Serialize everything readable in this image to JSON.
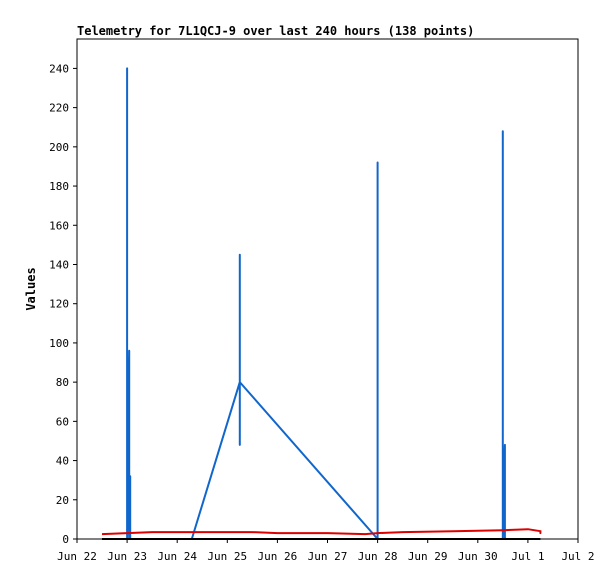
{
  "chart_data": {
    "type": "line",
    "title": "Telemetry for 7L1QCJ-9 over last 240 hours (138 points)",
    "xlabel": "",
    "ylabel": "Values",
    "xlim": [
      "2025-06-22T00:00",
      "2025-07-02T00:00"
    ],
    "ylim": [
      0,
      255
    ],
    "x_ticks": [
      "Jun 22",
      "Jun 23",
      "Jun 24",
      "Jun 25",
      "Jun 26",
      "Jun 27",
      "Jun 28",
      "Jun 29",
      "Jun 30",
      "Jul 1",
      "Jul 2"
    ],
    "y_ticks": [
      0,
      20,
      40,
      60,
      80,
      100,
      120,
      140,
      160,
      180,
      200,
      220,
      240
    ],
    "grid": false,
    "legend": "none",
    "series": [
      {
        "color": "#1166cc",
        "points": [
          [
            "2025-06-23T00:00",
            0
          ],
          [
            "2025-06-23T00:00",
            240
          ],
          [
            "2025-06-23T00:00",
            0
          ],
          [
            "2025-06-23T01:00",
            96
          ],
          [
            "2025-06-23T01:00",
            0
          ],
          [
            "2025-06-23T01:30",
            32
          ],
          [
            "2025-06-23T01:30",
            0
          ],
          [
            "2025-06-24T07:00",
            0
          ],
          [
            "2025-06-25T06:00",
            80
          ],
          [
            "2025-06-25T06:00",
            145
          ],
          [
            "2025-06-25T06:00",
            48
          ],
          [
            "2025-06-25T06:00",
            80
          ],
          [
            "2025-06-28T00:00",
            0
          ],
          [
            "2025-06-28T00:00",
            192
          ],
          [
            "2025-06-28T00:00",
            0
          ],
          [
            "2025-06-30T12:00",
            0
          ],
          [
            "2025-06-30T12:00",
            208
          ],
          [
            "2025-06-30T12:00",
            0
          ],
          [
            "2025-06-30T13:00",
            48
          ],
          [
            "2025-06-30T13:00",
            0
          ]
        ]
      },
      {
        "color": "#dd0000",
        "points": [
          [
            "2025-06-22T12:00",
            2.5
          ],
          [
            "2025-06-23T00:00",
            3
          ],
          [
            "2025-06-23T12:00",
            3.5
          ],
          [
            "2025-06-24T12:00",
            3.5
          ],
          [
            "2025-06-25T12:00",
            3.5
          ],
          [
            "2025-06-26T00:00",
            3
          ],
          [
            "2025-06-27T00:00",
            3
          ],
          [
            "2025-06-27T18:00",
            2.5
          ],
          [
            "2025-06-28T00:00",
            3
          ],
          [
            "2025-06-28T12:00",
            3.5
          ],
          [
            "2025-06-29T12:00",
            4
          ],
          [
            "2025-06-30T12:00",
            4.5
          ],
          [
            "2025-07-01T00:00",
            5
          ],
          [
            "2025-07-01T06:00",
            4
          ],
          [
            "2025-07-01T06:00",
            3
          ],
          [
            "2025-07-01T06:00",
            4.5
          ]
        ]
      },
      {
        "color": "#000000",
        "points": [
          [
            "2025-06-22T12:00",
            0
          ],
          [
            "2025-07-01T06:00",
            0
          ]
        ]
      }
    ]
  }
}
